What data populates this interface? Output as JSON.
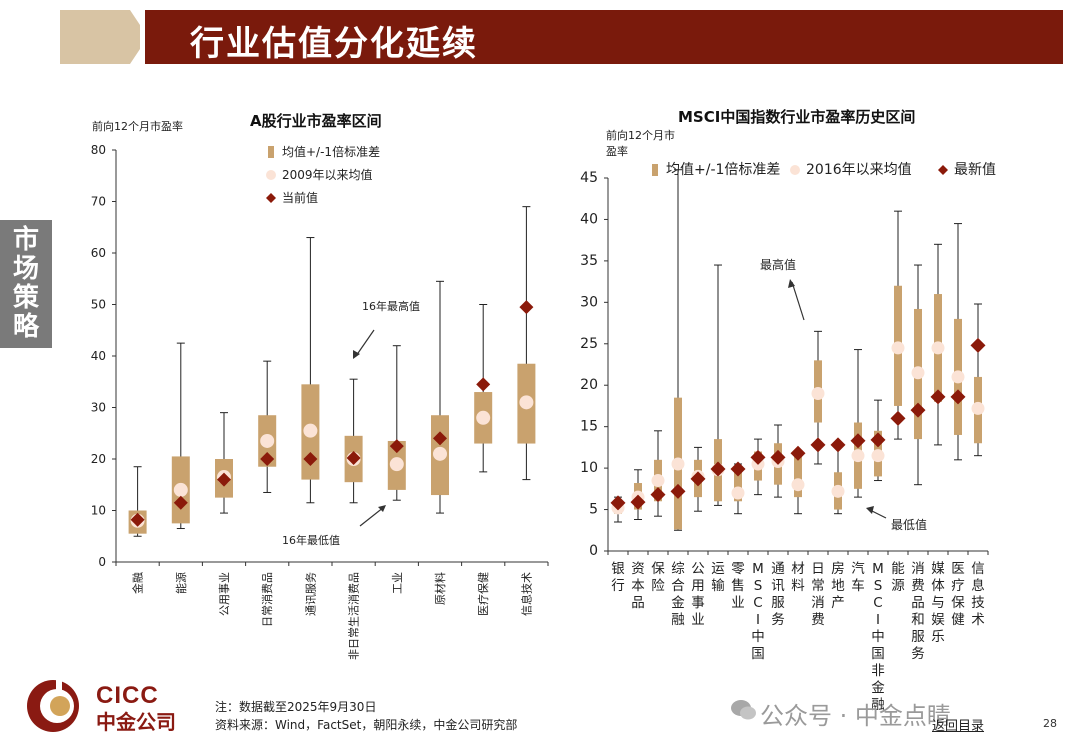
{
  "header": {
    "title": "行业估值分化延续"
  },
  "side_tab": {
    "label": "市场策略"
  },
  "footer": {
    "logo_en": "CICC",
    "logo_cn": "中金公司",
    "note": "注：数据截至2025年9月30日",
    "source": "资料来源：Wind，FactSet，朝阳永续，中金公司研究部",
    "watermark": "公众号 · 中金点睛",
    "back": "返回目录",
    "page": "28"
  },
  "colors": {
    "band": "#c9a26e",
    "avg": "#fbe3d6",
    "latest": "#8b1a0a",
    "header": "#7a1a0c",
    "accent_light": "#d8c4a4"
  },
  "chart_data": [
    {
      "type": "box-range",
      "title": "A股行业市盈率区间",
      "ylabel": "前向12个月市盈率",
      "ylim": [
        0,
        80
      ],
      "yticks": [
        0,
        10,
        20,
        30,
        40,
        50,
        60,
        70,
        80
      ],
      "legend": [
        "均值+/-1倍标准差",
        "2009年以来均值",
        "当前值"
      ],
      "legend_position": "top-center",
      "annotations": [
        "16年最高值",
        "16年最低值"
      ],
      "categories": [
        "金融",
        "能源",
        "公用事业",
        "日常消费品",
        "通讯服务",
        "非日常生活消费品",
        "工业",
        "原材料",
        "医疗保健",
        "信息技术"
      ],
      "max": [
        18.5,
        42.5,
        29,
        39,
        63,
        35.5,
        42,
        54.5,
        50,
        69
      ],
      "min": [
        5,
        6.5,
        9.5,
        13.5,
        11.5,
        11.5,
        12,
        9.5,
        17.5,
        16
      ],
      "band_high": [
        10,
        20.5,
        20,
        28.5,
        34.5,
        24.5,
        23.5,
        28.5,
        33,
        38.5
      ],
      "band_low": [
        5.5,
        7.5,
        12.5,
        18.5,
        16,
        15.5,
        14,
        13,
        23,
        23
      ],
      "average": [
        8,
        14,
        16.5,
        23.5,
        25.5,
        20,
        19,
        21,
        28,
        31
      ],
      "current": [
        8.2,
        11.5,
        16,
        20,
        20,
        20.2,
        22.5,
        24,
        34.5,
        49.5
      ]
    },
    {
      "type": "box-range",
      "title": "MSCI中国指数行业市盈率历史区间",
      "ylabel": "前向12个月市盈率",
      "ylim": [
        0,
        45
      ],
      "yticks": [
        0,
        5,
        10,
        15,
        20,
        25,
        30,
        35,
        40,
        45
      ],
      "legend": [
        "均值+/-1倍标准差",
        "2016年以来均值",
        "最新值"
      ],
      "legend_position": "top-center",
      "annotations": [
        "最高值",
        "最低值"
      ],
      "categories": [
        "银行",
        "资本品",
        "保险",
        "综合金融",
        "公用事业",
        "运输",
        "零售业",
        "MSCI中国",
        "通讯服务",
        "材料",
        "日常消费",
        "房地产",
        "汽车",
        "MSCI中国非金融",
        "能源",
        "消费品和服务",
        "媒体与娱乐",
        "医疗保健",
        "信息技术"
      ],
      "max": [
        6.5,
        9.8,
        14.5,
        46,
        12.5,
        34.5,
        10.5,
        13.5,
        15.2,
        11.5,
        26.5,
        13,
        24.3,
        18.2,
        41,
        34.5,
        37,
        39.5,
        29.8
      ],
      "min": [
        3.5,
        3.8,
        4.2,
        2.5,
        4.8,
        5.5,
        4.5,
        6.8,
        6.5,
        4.5,
        10.5,
        4.5,
        6.5,
        8.5,
        13.5,
        8,
        12.8,
        11,
        11.5
      ],
      "band_high": [
        6,
        8.2,
        11,
        18.5,
        11,
        13.5,
        10,
        12,
        13,
        11.5,
        23,
        9.5,
        15.5,
        14.5,
        32,
        29.2,
        31,
        28,
        21
      ],
      "band_low": [
        4.5,
        5,
        6,
        2.6,
        6.5,
        6,
        6,
        8.5,
        8,
        6.5,
        15.5,
        5,
        7.5,
        9,
        17.5,
        13.5,
        18,
        14,
        13
      ],
      "average": [
        5.2,
        6.5,
        8.5,
        10.5,
        9,
        9.8,
        7,
        10.5,
        10.8,
        8,
        19,
        7.2,
        11.5,
        11.5,
        24.5,
        21.5,
        24.5,
        21,
        17.2
      ],
      "current": [
        5.8,
        5.9,
        6.8,
        7.2,
        8.7,
        9.9,
        9.9,
        11.3,
        11.3,
        11.8,
        12.8,
        12.8,
        13.3,
        13.4,
        16,
        17,
        18.6,
        18.6,
        24.8
      ]
    }
  ]
}
